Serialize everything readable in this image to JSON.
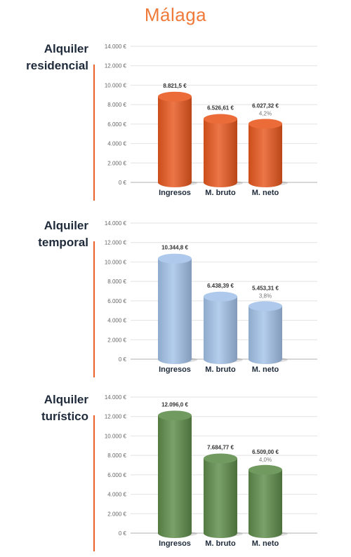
{
  "page": {
    "title": "Málaga"
  },
  "chart_data": [
    {
      "type": "bar",
      "title_lines": [
        "Alquiler",
        "residencial"
      ],
      "categories": [
        "Ingresos",
        "M. bruto",
        "M. neto"
      ],
      "values": [
        8821.5,
        6526.61,
        6027.32
      ],
      "value_labels": [
        "8.821,5 €",
        "6.526,61 €",
        "6.027,32 €"
      ],
      "sub_labels": [
        "",
        "",
        "4,2%"
      ],
      "ylim": [
        0,
        14000
      ],
      "yticks": [
        "0 €",
        "2.000 €",
        "4.000 €",
        "6.000 €",
        "8.000 €",
        "10.000 €",
        "12.000 €",
        "14.000 €"
      ],
      "color": "#e8581e",
      "grid": true
    },
    {
      "type": "bar",
      "title_lines": [
        "Alquiler",
        "temporal"
      ],
      "categories": [
        "Ingresos",
        "M. bruto",
        "M. neto"
      ],
      "values": [
        10344.8,
        6438.39,
        5453.31
      ],
      "value_labels": [
        "10.344,8 €",
        "6.438,39 €",
        "5.453,31 €"
      ],
      "sub_labels": [
        "",
        "",
        "3,8%"
      ],
      "ylim": [
        0,
        14000
      ],
      "yticks": [
        "0 €",
        "2.000 €",
        "4.000 €",
        "6.000 €",
        "8.000 €",
        "10.000 €",
        "12.000 €",
        "14.000 €"
      ],
      "color": "#a3c2e8",
      "grid": true
    },
    {
      "type": "bar",
      "title_lines": [
        "Alquiler",
        "turístico"
      ],
      "categories": [
        "Ingresos",
        "M. bruto",
        "M. neto"
      ],
      "values": [
        12096.0,
        7684.77,
        6509.0
      ],
      "value_labels": [
        "12.096,0 €",
        "7.684,77 €",
        "6.509,00 €"
      ],
      "sub_labels": [
        "",
        "",
        "4,0%"
      ],
      "ylim": [
        0,
        14000
      ],
      "yticks": [
        "0 €",
        "2.000 €",
        "4.000 €",
        "6.000 €",
        "8.000 €",
        "10.000 €",
        "12.000 €",
        "14.000 €"
      ],
      "color": "#5e8c4a",
      "grid": true
    }
  ]
}
